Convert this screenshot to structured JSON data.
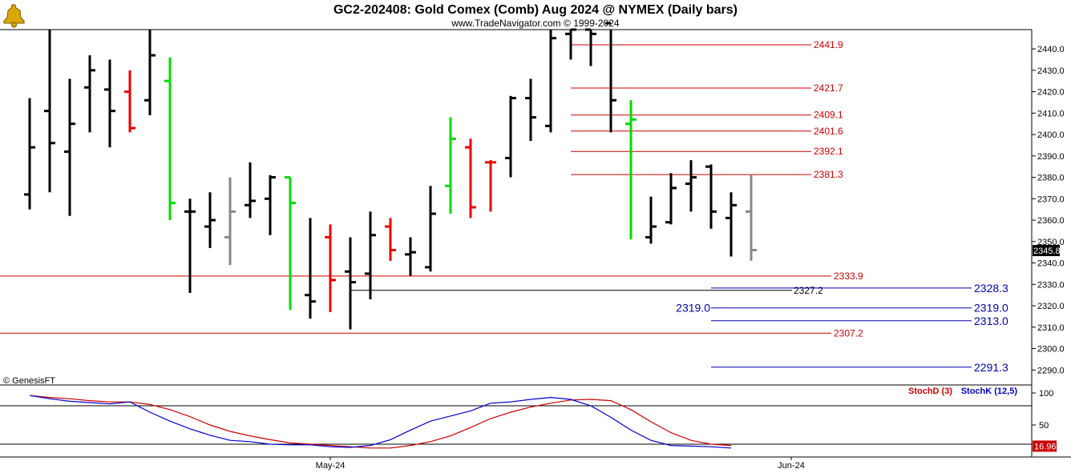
{
  "header": {
    "title": "GC2-202408:  Gold Comex (Comb) Aug 2024 @ NYMEX  (Daily bars)",
    "subtitle": "www.TradeNavigator.com © 1999-2024"
  },
  "watermark": "© GenesisFT",
  "logo_icon": "bell-logo-icon",
  "colors": {
    "up": "#00dd00",
    "down": "#ee0000",
    "neutral": "#000000",
    "current": "#888888",
    "red_line": "#cc0000",
    "blue_line": "#0000aa",
    "stochD": "#cc0000",
    "stochK": "#0000cc"
  },
  "chart_data": [
    {
      "type": "ohlc",
      "title": "GC2-202408:  Gold Comex (Comb) Aug 2024 @ NYMEX  (Daily bars)",
      "ylim": [
        2283,
        2449
      ],
      "yticks": [
        2290.0,
        2300.0,
        2310.0,
        2320.0,
        2330.0,
        2340.0,
        2350.0,
        2360.0,
        2370.0,
        2380.0,
        2390.0,
        2400.0,
        2410.0,
        2420.0,
        2430.0,
        2440.0
      ],
      "last_price": "2345.8",
      "x_labels": [
        {
          "label": "May-24",
          "bar": 15
        },
        {
          "label": "Jun-24",
          "bar": 38
        }
      ],
      "bars": [
        {
          "o": 2372,
          "h": 2417,
          "l": 2365,
          "c": 2394,
          "color": "neutral"
        },
        {
          "o": 2411,
          "h": 2453,
          "l": 2373,
          "c": 2396,
          "color": "neutral"
        },
        {
          "o": 2392,
          "h": 2426,
          "l": 2362,
          "c": 2405,
          "color": "neutral"
        },
        {
          "o": 2422,
          "h": 2437,
          "l": 2401,
          "c": 2430,
          "color": "neutral"
        },
        {
          "o": 2421,
          "h": 2435,
          "l": 2394,
          "c": 2411,
          "color": "neutral"
        },
        {
          "o": 2420,
          "h": 2430,
          "l": 2401,
          "c": 2403,
          "color": "down"
        },
        {
          "o": 2416,
          "h": 2450,
          "l": 2409,
          "c": 2437,
          "color": "neutral"
        },
        {
          "o": 2425,
          "h": 2436,
          "l": 2360,
          "c": 2368,
          "color": "up"
        },
        {
          "o": 2364,
          "h": 2370,
          "l": 2326,
          "c": 2364,
          "color": "neutral"
        },
        {
          "o": 2357,
          "h": 2373,
          "l": 2347,
          "c": 2360,
          "color": "neutral"
        },
        {
          "o": 2352,
          "h": 2380,
          "l": 2339,
          "c": 2364,
          "color": "current"
        },
        {
          "o": 2367,
          "h": 2387,
          "l": 2361,
          "c": 2369,
          "color": "neutral"
        },
        {
          "o": 2370,
          "h": 2381,
          "l": 2353,
          "c": 2380,
          "color": "neutral"
        },
        {
          "o": 2380,
          "h": 2380,
          "l": 2318,
          "c": 2368,
          "color": "up"
        },
        {
          "o": 2325,
          "h": 2361,
          "l": 2314,
          "c": 2322,
          "color": "neutral"
        },
        {
          "o": 2352,
          "h": 2358,
          "l": 2317,
          "c": 2332,
          "color": "down"
        },
        {
          "o": 2336,
          "h": 2352,
          "l": 2309,
          "c": 2331,
          "color": "neutral"
        },
        {
          "o": 2335,
          "h": 2364,
          "l": 2323,
          "c": 2353,
          "color": "neutral"
        },
        {
          "o": 2357,
          "h": 2361,
          "l": 2341,
          "c": 2346,
          "color": "down"
        },
        {
          "o": 2344,
          "h": 2352,
          "l": 2334,
          "c": 2345,
          "color": "neutral"
        },
        {
          "o": 2338,
          "h": 2376,
          "l": 2336,
          "c": 2363,
          "color": "neutral"
        },
        {
          "o": 2376,
          "h": 2408,
          "l": 2363,
          "c": 2398,
          "color": "up"
        },
        {
          "o": 2394,
          "h": 2398,
          "l": 2361,
          "c": 2366,
          "color": "down"
        },
        {
          "o": 2387,
          "h": 2388,
          "l": 2364,
          "c": 2387,
          "color": "down"
        },
        {
          "o": 2389,
          "h": 2418,
          "l": 2380,
          "c": 2417,
          "color": "neutral"
        },
        {
          "o": 2417,
          "h": 2426,
          "l": 2397,
          "c": 2408,
          "color": "neutral"
        },
        {
          "o": 2404,
          "h": 2451,
          "l": 2401,
          "c": 2445,
          "color": "neutral"
        },
        {
          "o": 2447,
          "h": 2457,
          "l": 2435,
          "c": 2449,
          "color": "neutral"
        },
        {
          "o": 2449,
          "h": 2451,
          "l": 2432,
          "c": 2447,
          "color": "neutral"
        },
        {
          "o": 2452,
          "h": 2455,
          "l": 2401,
          "c": 2416,
          "color": "neutral"
        },
        {
          "o": 2405,
          "h": 2416,
          "l": 2351,
          "c": 2407,
          "color": "up"
        },
        {
          "o": 2352,
          "h": 2371,
          "l": 2349,
          "c": 2357,
          "color": "neutral"
        },
        {
          "o": 2359,
          "h": 2382,
          "l": 2358,
          "c": 2375,
          "color": "neutral"
        },
        {
          "o": 2377,
          "h": 2388,
          "l": 2364,
          "c": 2380,
          "color": "neutral"
        },
        {
          "o": 2385,
          "h": 2386,
          "l": 2356,
          "c": 2364,
          "color": "neutral"
        },
        {
          "o": 2361,
          "h": 2373,
          "l": 2343,
          "c": 2367,
          "color": "neutral"
        },
        {
          "o": 2364,
          "h": 2381,
          "l": 2341,
          "c": 2346,
          "color": "current"
        }
      ],
      "levels_red": [
        "2441.9",
        "2421.7",
        "2409.1",
        "2401.6",
        "2392.1",
        "2381.3",
        "2333.9",
        "2307.2"
      ],
      "levels_blue": [
        "2328.3",
        "2319.0",
        "2313.0",
        "2291.3"
      ],
      "level_black": "2327.2",
      "level_blue_left": "2319.0"
    },
    {
      "type": "line",
      "series": [
        {
          "name": "StochD (3)",
          "values": [
            96,
            93,
            91,
            88,
            86,
            86,
            82,
            74,
            63,
            50,
            40,
            33,
            27,
            22,
            20,
            18,
            16,
            14,
            14,
            18,
            24,
            33,
            46,
            60,
            70,
            78,
            84,
            89,
            90,
            88,
            74,
            55,
            38,
            26,
            20,
            18
          ]
        },
        {
          "name": "StochK (12,5)",
          "values": [
            96,
            91,
            87,
            85,
            83,
            86,
            70,
            56,
            44,
            34,
            26,
            24,
            20,
            19,
            19,
            16,
            15,
            18,
            27,
            42,
            56,
            64,
            72,
            84,
            86,
            90,
            93,
            90,
            80,
            62,
            42,
            26,
            18,
            17,
            16,
            14
          ]
        }
      ],
      "ylim": [
        0,
        110
      ],
      "yticks": [
        100,
        50
      ],
      "last_value": "16.96"
    }
  ]
}
